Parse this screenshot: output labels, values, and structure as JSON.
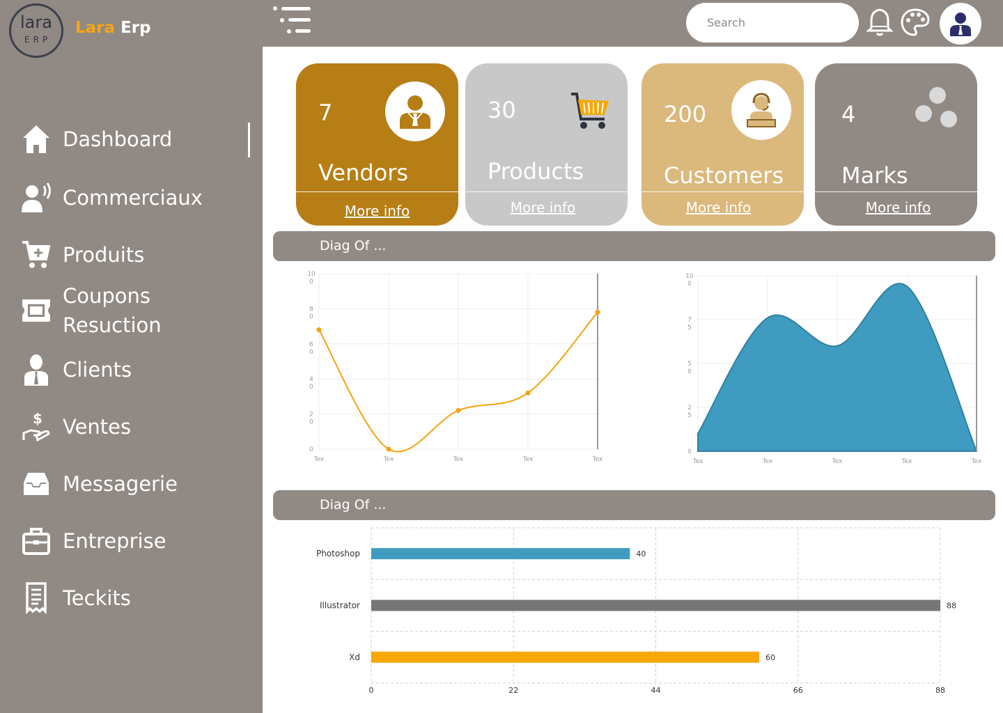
{
  "app": {
    "logo_top": "lara",
    "logo_bottom": "ERP",
    "brand_first": "Lara",
    "brand_second": "Erp"
  },
  "sidebar": {
    "items": [
      {
        "label": "Dashboard",
        "icon": "home-icon"
      },
      {
        "label": "Commerciaux",
        "icon": "user-voice-icon"
      },
      {
        "label": "Produits",
        "icon": "cart-plus-icon"
      },
      {
        "label": "Coupons",
        "label2": "Resuction",
        "icon": "ticket-icon"
      },
      {
        "label": "Clients",
        "icon": "client-icon"
      },
      {
        "label": "Ventes",
        "icon": "hand-dollar-icon"
      },
      {
        "label": "Messagerie",
        "icon": "inbox-icon"
      },
      {
        "label": "Entreprise",
        "icon": "briefcase-icon"
      },
      {
        "label": "Teckits",
        "icon": "receipt-icon"
      }
    ]
  },
  "topbar": {
    "search_placeholder": "Search"
  },
  "cards": [
    {
      "value": "7",
      "label": "Vendors",
      "more": "More info",
      "color": "#b67e14"
    },
    {
      "value": "30",
      "label": "Products",
      "more": "More info",
      "color": "#c8c8c8"
    },
    {
      "value": "200",
      "label": "Customers",
      "more": "More info",
      "color": "#dbb87c"
    },
    {
      "value": "4",
      "label": "Marks",
      "more": "More info",
      "color": "#918983"
    }
  ],
  "sections": [
    {
      "title": "Diag Of ..."
    },
    {
      "title": "Diag Of ..."
    }
  ],
  "chart_data": [
    {
      "type": "line",
      "title": "",
      "categories": [
        "Tex",
        "Tex",
        "Tex",
        "Tex",
        "Tex"
      ],
      "values": [
        68,
        0,
        22,
        32,
        78
      ],
      "ylim": [
        0,
        100
      ],
      "yticks": [
        "10 0",
        "8 0",
        "6 0",
        "4 0",
        "2 0",
        "0"
      ],
      "color": "#f5a20c"
    },
    {
      "type": "area",
      "title": "",
      "categories": [
        "Tex",
        "Tex",
        "Tex",
        "Tex",
        "Tex"
      ],
      "values": [
        10,
        76,
        60,
        94,
        0
      ],
      "ylim": [
        0,
        100
      ],
      "yticks": [
        "10 0",
        "7 5",
        "5 0",
        "2 5",
        "0"
      ],
      "color": "#3f9cc0"
    },
    {
      "type": "bar",
      "orientation": "horizontal",
      "categories": [
        "Photoshop",
        "Illustrator",
        "Xd"
      ],
      "values": [
        40,
        88,
        60
      ],
      "xlim": [
        0,
        88
      ],
      "xticks": [
        "0",
        "22",
        "44",
        "66",
        "88"
      ],
      "colors": [
        "#3f9cc0",
        "#767676",
        "#f9a702"
      ]
    }
  ]
}
